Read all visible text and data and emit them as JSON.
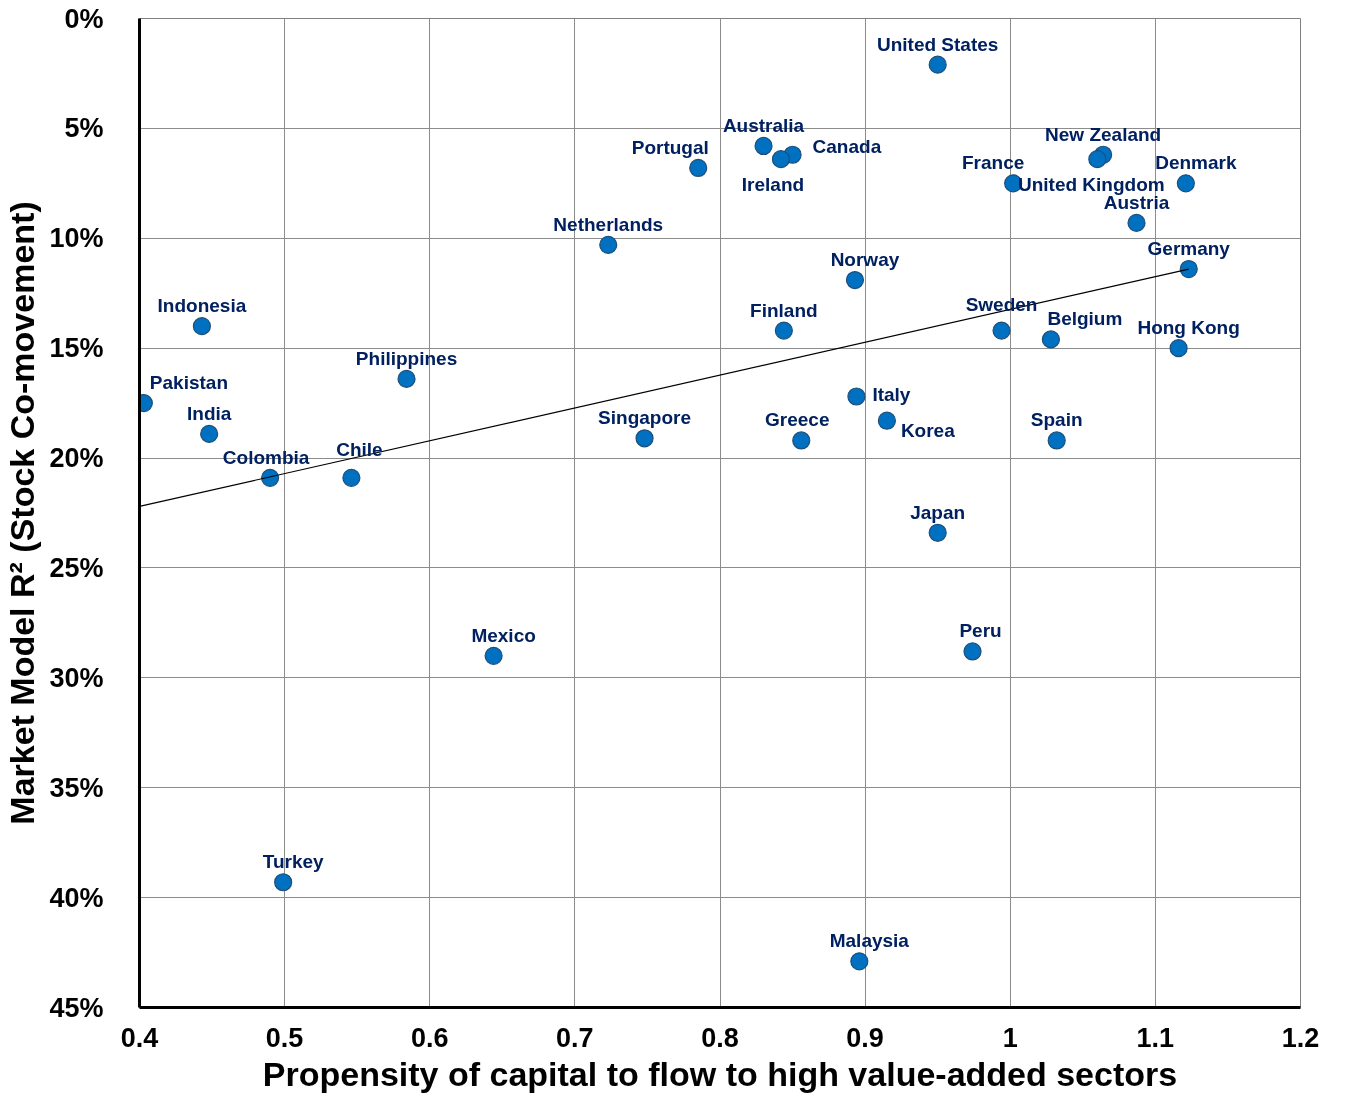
{
  "chart_data": {
    "type": "scatter",
    "xlabel": "Propensity of capital to flow to high value-added sectors",
    "ylabel": "Market Model R² (Stock Co-movement)",
    "xlim": [
      0.4,
      1.2
    ],
    "xticks": [
      0.4,
      0.5,
      0.6,
      0.7,
      0.8,
      0.9,
      1,
      1.1,
      1.2
    ],
    "ylim": [
      45,
      0
    ],
    "yticks": [
      {
        "value": 0,
        "label": "0%"
      },
      {
        "value": 5,
        "label": "5%"
      },
      {
        "value": 10,
        "label": "10%"
      },
      {
        "value": 15,
        "label": "15%"
      },
      {
        "value": 20,
        "label": "20%"
      },
      {
        "value": 25,
        "label": "25%"
      },
      {
        "value": 30,
        "label": "30%"
      },
      {
        "value": 35,
        "label": "35%"
      },
      {
        "value": 40,
        "label": "40%"
      },
      {
        "value": 45,
        "label": "45%"
      }
    ],
    "grid": true,
    "series": [
      {
        "marker": "circle",
        "color": "#0070c0",
        "x": [
          0.95,
          0.785,
          0.83,
          0.85,
          0.842,
          1.064,
          1.06,
          1.002,
          1.121,
          1.087,
          0.723,
          0.893,
          1.123,
          0.443,
          0.844,
          0.994,
          1.028,
          1.116,
          0.584,
          0.403,
          0.894,
          0.915,
          0.448,
          0.748,
          0.856,
          1.032,
          0.49,
          0.546,
          0.95,
          0.644,
          0.974,
          0.499,
          0.896
        ],
        "values": [
          2.1,
          6.8,
          5.8,
          6.2,
          6.4,
          6.2,
          6.4,
          7.5,
          7.5,
          9.3,
          10.3,
          11.9,
          11.4,
          14.0,
          14.2,
          14.2,
          14.6,
          15.0,
          16.4,
          17.5,
          17.2,
          18.3,
          18.9,
          19.1,
          19.2,
          19.2,
          20.9,
          20.9,
          23.4,
          29.0,
          28.8,
          39.3,
          42.9
        ]
      },
      {
        "type": "line",
        "color": "#000000",
        "x": [
          0.4,
          1.123
        ],
        "values": [
          22.2,
          11.4
        ]
      }
    ],
    "annotations": [
      {
        "text": "United States",
        "x": 0.95,
        "y": 2.1
      },
      {
        "text": "Portugal",
        "x": 0.785,
        "y": 6.8
      },
      {
        "text": "Australia",
        "x": 0.83,
        "y": 5.8
      },
      {
        "text": "Canada",
        "x": 0.85,
        "y": 6.2
      },
      {
        "text": "Ireland",
        "x": 0.842,
        "y": 6.4
      },
      {
        "text": "New Zealand",
        "x": 1.064,
        "y": 6.2
      },
      {
        "text": "United Kingdom",
        "x": 1.06,
        "y": 6.4
      },
      {
        "text": "France",
        "x": 1.002,
        "y": 7.5
      },
      {
        "text": "Denmark",
        "x": 1.121,
        "y": 7.5
      },
      {
        "text": "Austria",
        "x": 1.087,
        "y": 9.3
      },
      {
        "text": "Netherlands",
        "x": 0.723,
        "y": 10.3
      },
      {
        "text": "Norway",
        "x": 0.893,
        "y": 11.9
      },
      {
        "text": "Germany",
        "x": 1.123,
        "y": 11.4
      },
      {
        "text": "Indonesia",
        "x": 0.443,
        "y": 14.0
      },
      {
        "text": "Finland",
        "x": 0.844,
        "y": 14.2
      },
      {
        "text": "Sweden",
        "x": 0.994,
        "y": 14.2
      },
      {
        "text": "Belgium",
        "x": 1.028,
        "y": 14.6
      },
      {
        "text": "Hong Kong",
        "x": 1.116,
        "y": 15.0
      },
      {
        "text": "Philippines",
        "x": 0.584,
        "y": 16.4
      },
      {
        "text": "Pakistan",
        "x": 0.403,
        "y": 17.5
      },
      {
        "text": "Italy",
        "x": 0.894,
        "y": 17.2
      },
      {
        "text": "Korea",
        "x": 0.915,
        "y": 18.3
      },
      {
        "text": "India",
        "x": 0.448,
        "y": 18.9
      },
      {
        "text": "Singapore",
        "x": 0.748,
        "y": 19.1
      },
      {
        "text": "Greece",
        "x": 0.856,
        "y": 19.2
      },
      {
        "text": "Spain",
        "x": 1.032,
        "y": 19.2
      },
      {
        "text": "Colombia",
        "x": 0.49,
        "y": 20.9
      },
      {
        "text": "Chile",
        "x": 0.546,
        "y": 20.9
      },
      {
        "text": "Japan",
        "x": 0.95,
        "y": 23.4
      },
      {
        "text": "Mexico",
        "x": 0.644,
        "y": 29.0
      },
      {
        "text": "Peru",
        "x": 0.974,
        "y": 28.8
      },
      {
        "text": "Turkey",
        "x": 0.499,
        "y": 39.3
      },
      {
        "text": "Malaysia",
        "x": 0.896,
        "y": 42.9
      }
    ]
  }
}
